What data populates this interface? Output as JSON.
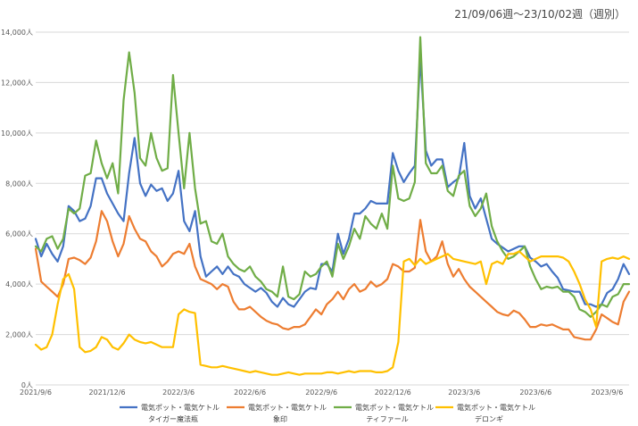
{
  "chart_data": {
    "type": "line",
    "title": "",
    "subtitle": "21/09/06週～23/10/02週（週別）",
    "ylim": [
      0,
      14000
    ],
    "yticks": [
      0,
      2000,
      4000,
      6000,
      8000,
      10000,
      12000,
      14000
    ],
    "ytick_labels": [
      "0人",
      "2,000人",
      "4,000人",
      "6,000人",
      "8,000人",
      "10,000人",
      "12,000人",
      "14,000人"
    ],
    "x_count": 109,
    "xtick_positions": [
      0,
      13,
      26,
      39,
      52,
      65,
      78,
      91,
      104
    ],
    "xtick_labels": [
      "2021/9/6",
      "2021/12/6",
      "2022/3/6",
      "2022/6/6",
      "2022/9/6",
      "2022/12/6",
      "2023/3/6",
      "2023/6/6",
      "2023/9/6"
    ],
    "grid": "horizontal",
    "legend_position": "bottom",
    "series": [
      {
        "name": "電気ポット・電気ケトル タイガー魔法瓶",
        "line1": "電気ポット・電気ケトル",
        "line2": "タイガー魔法瓶",
        "color": "#4472C4",
        "values": [
          5800,
          5100,
          5600,
          5200,
          4900,
          5500,
          7100,
          6900,
          6500,
          6600,
          7100,
          8200,
          8200,
          7600,
          7200,
          6800,
          6500,
          8400,
          9800,
          8000,
          7500,
          7950,
          7700,
          7800,
          7300,
          7600,
          8500,
          6500,
          6100,
          6900,
          5100,
          4300,
          4500,
          4700,
          4400,
          4700,
          4400,
          4300,
          4000,
          3850,
          3700,
          3850,
          3650,
          3300,
          3100,
          3450,
          3200,
          3100,
          3400,
          3700,
          3850,
          3800,
          4800,
          4800,
          4500,
          6000,
          5200,
          5800,
          6800,
          6800,
          7000,
          7300,
          7200,
          7200,
          7200,
          9200,
          8500,
          8050,
          8400,
          8700,
          13000,
          9300,
          8700,
          8950,
          8950,
          7850,
          8050,
          8200,
          9600,
          7500,
          7000,
          7400,
          6600,
          5800,
          5600,
          5450,
          5300,
          5400,
          5500,
          5500,
          5050,
          4900,
          4700,
          4800,
          4500,
          4250,
          3800,
          3750,
          3700,
          3700,
          3200,
          3200,
          3100,
          3200,
          3650,
          3800,
          4200,
          4800,
          4400
        ]
      },
      {
        "name": "電気ポット・電気ケトル 象印",
        "line1": "電気ポット・電気ケトル",
        "line2": "象印",
        "color": "#ED7D31",
        "values": [
          5400,
          4100,
          3900,
          3700,
          3500,
          4000,
          5000,
          5050,
          4950,
          4800,
          5050,
          5700,
          6900,
          6500,
          5700,
          5100,
          5600,
          6700,
          6200,
          5800,
          5700,
          5300,
          5100,
          4700,
          4900,
          5200,
          5300,
          5200,
          5600,
          4700,
          4200,
          4100,
          4000,
          3800,
          4000,
          3900,
          3300,
          3000,
          3000,
          3100,
          2900,
          2700,
          2550,
          2450,
          2400,
          2250,
          2200,
          2300,
          2300,
          2400,
          2700,
          3000,
          2800,
          3200,
          3400,
          3700,
          3400,
          3800,
          4000,
          3700,
          3800,
          4100,
          3900,
          4000,
          4200,
          4800,
          4700,
          4500,
          4500,
          4650,
          6550,
          5300,
          4900,
          5100,
          5700,
          4800,
          4300,
          4600,
          4200,
          3900,
          3700,
          3500,
          3300,
          3100,
          2900,
          2800,
          2750,
          2950,
          2850,
          2600,
          2300,
          2300,
          2400,
          2350,
          2400,
          2300,
          2200,
          2200,
          1900,
          1850,
          1800,
          1800,
          2200,
          2800,
          2650,
          2500,
          2400,
          3300,
          3700
        ]
      },
      {
        "name": "電気ポット・電気ケトル ティファール",
        "line1": "電気ポット・電気ケトル",
        "line2": "ティファール",
        "color": "#70AD47",
        "values": [
          5500,
          5300,
          5800,
          5900,
          5400,
          5800,
          7000,
          6800,
          7000,
          8300,
          8400,
          9700,
          8800,
          8200,
          8800,
          7600,
          11300,
          13200,
          11600,
          9000,
          8700,
          10000,
          9000,
          8500,
          8600,
          12300,
          10000,
          7800,
          10000,
          7800,
          6400,
          6500,
          5700,
          5600,
          6000,
          5100,
          4800,
          4600,
          4500,
          4700,
          4300,
          4100,
          3800,
          3700,
          3500,
          4700,
          3500,
          3400,
          3600,
          4500,
          4300,
          4400,
          4700,
          4900,
          4300,
          5600,
          5000,
          5500,
          6200,
          5800,
          6700,
          6400,
          6200,
          6800,
          6200,
          8700,
          7400,
          7300,
          7400,
          8050,
          13800,
          8800,
          8400,
          8400,
          8700,
          7700,
          7500,
          8300,
          8500,
          7100,
          6700,
          7000,
          7600,
          6300,
          5700,
          5300,
          5000,
          5100,
          5300,
          5500,
          4700,
          4200,
          3800,
          3900,
          3850,
          3900,
          3700,
          3700,
          3500,
          3000,
          2900,
          2700,
          2900,
          3200,
          3100,
          3500,
          3600,
          4000,
          4000
        ]
      },
      {
        "name": "電気ポット・電気ケトル デロンギ",
        "line1": "電気ポット・電気ケトル",
        "line2": "デロンギ",
        "color": "#FFC000",
        "values": [
          1600,
          1400,
          1500,
          2000,
          3200,
          4200,
          4400,
          3800,
          1500,
          1300,
          1350,
          1500,
          1900,
          1800,
          1500,
          1400,
          1650,
          2000,
          1800,
          1700,
          1650,
          1700,
          1600,
          1500,
          1500,
          1500,
          2800,
          3000,
          2900,
          2850,
          800,
          750,
          700,
          700,
          750,
          700,
          650,
          600,
          550,
          500,
          550,
          500,
          450,
          400,
          400,
          450,
          500,
          450,
          400,
          450,
          450,
          450,
          450,
          500,
          500,
          450,
          500,
          550,
          500,
          550,
          550,
          550,
          500,
          500,
          550,
          700,
          1700,
          4900,
          5000,
          4750,
          5000,
          4800,
          4900,
          5000,
          5100,
          5200,
          5000,
          4950,
          4900,
          4850,
          4800,
          4900,
          4000,
          4800,
          4900,
          4800,
          5200,
          5200,
          5300,
          5100,
          4900,
          5000,
          5100,
          5100,
          5100,
          5100,
          5050,
          4900,
          4500,
          4000,
          3400,
          3000,
          2300,
          4900,
          5000,
          5050,
          5000,
          5100,
          5000
        ]
      }
    ]
  }
}
